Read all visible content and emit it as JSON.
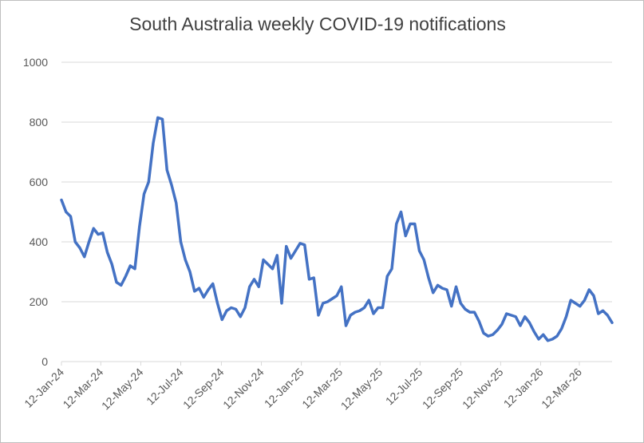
{
  "chart_data": {
    "type": "line",
    "title": "South Australia weekly COVID-19 notifications",
    "x": [
      "2024-01-12",
      "2024-01-19",
      "2024-01-26",
      "2024-02-02",
      "2024-02-09",
      "2024-02-16",
      "2024-02-23",
      "2024-03-01",
      "2024-03-08",
      "2024-03-15",
      "2024-03-22",
      "2024-03-29",
      "2024-04-05",
      "2024-04-12",
      "2024-04-19",
      "2024-04-26",
      "2024-05-03",
      "2024-05-10",
      "2024-05-17",
      "2024-05-24",
      "2024-05-31",
      "2024-06-07",
      "2024-06-14",
      "2024-06-21",
      "2024-06-28",
      "2024-07-05",
      "2024-07-12",
      "2024-07-19",
      "2024-07-26",
      "2024-08-02",
      "2024-08-09",
      "2024-08-16",
      "2024-08-23",
      "2024-08-30",
      "2024-09-06",
      "2024-09-13",
      "2024-09-20",
      "2024-09-27",
      "2024-10-04",
      "2024-10-11",
      "2024-10-18",
      "2024-10-25",
      "2024-11-01",
      "2024-11-08",
      "2024-11-15",
      "2024-11-22",
      "2024-11-29",
      "2024-12-06",
      "2024-12-13",
      "2024-12-20",
      "2024-12-27",
      "2025-01-03",
      "2025-01-10",
      "2025-01-17",
      "2025-01-24",
      "2025-01-31",
      "2025-02-07",
      "2025-02-14",
      "2025-02-21",
      "2025-02-28",
      "2025-03-07",
      "2025-03-14",
      "2025-03-21",
      "2025-03-28",
      "2025-04-04",
      "2025-04-11",
      "2025-04-18",
      "2025-04-25",
      "2025-05-02",
      "2025-05-09",
      "2025-05-16",
      "2025-05-23",
      "2025-05-30",
      "2025-06-06",
      "2025-06-13",
      "2025-06-20",
      "2025-06-27",
      "2025-07-04",
      "2025-07-11",
      "2025-07-18",
      "2025-07-25",
      "2025-08-01",
      "2025-08-08",
      "2025-08-15",
      "2025-08-22",
      "2025-08-29",
      "2025-09-05",
      "2025-09-12",
      "2025-09-19",
      "2025-09-26",
      "2025-10-03",
      "2025-10-10",
      "2025-10-17",
      "2025-10-24",
      "2025-10-31",
      "2025-11-07",
      "2025-11-14",
      "2025-11-21",
      "2025-11-28",
      "2025-12-05",
      "2025-12-12",
      "2025-12-19",
      "2025-12-26",
      "2026-01-02",
      "2026-01-09",
      "2026-01-16",
      "2026-01-23",
      "2026-01-30",
      "2026-02-06",
      "2026-02-13",
      "2026-02-20",
      "2026-02-27",
      "2026-03-06",
      "2026-03-13",
      "2026-03-20",
      "2026-03-27",
      "2026-04-03",
      "2026-04-10",
      "2026-04-17",
      "2026-04-24",
      "2026-05-01"
    ],
    "series": [
      {
        "color": "#4472c4",
        "values": [
          540,
          500,
          485,
          400,
          380,
          350,
          400,
          445,
          425,
          430,
          365,
          325,
          265,
          255,
          285,
          320,
          310,
          450,
          560,
          600,
          730,
          815,
          810,
          640,
          590,
          530,
          400,
          340,
          300,
          235,
          245,
          215,
          240,
          260,
          195,
          140,
          170,
          180,
          175,
          150,
          180,
          250,
          275,
          250,
          340,
          325,
          310,
          355,
          195,
          385,
          345,
          370,
          395,
          390,
          275,
          280,
          155,
          195,
          200,
          210,
          220,
          250,
          120,
          155,
          165,
          170,
          180,
          205,
          160,
          180,
          180,
          285,
          310,
          460,
          500,
          420,
          460,
          460,
          370,
          340,
          280,
          230,
          255,
          245,
          240,
          185,
          250,
          195,
          175,
          165,
          165,
          135,
          95,
          85,
          90,
          105,
          125,
          160,
          155,
          150,
          120,
          150,
          130,
          100,
          75,
          90,
          70,
          75,
          85,
          110,
          150,
          205,
          195,
          185,
          205,
          240,
          220,
          160,
          170,
          155,
          130
        ]
      }
    ],
    "xlim": [
      "2024-01-12",
      "2026-05-01"
    ],
    "xticks": [
      {
        "value": "2024-01-12",
        "label": "12-Jan-24"
      },
      {
        "value": "2024-03-12",
        "label": "12-Mar-24"
      },
      {
        "value": "2024-05-12",
        "label": "12-May-24"
      },
      {
        "value": "2024-07-12",
        "label": "12-Jul-24"
      },
      {
        "value": "2024-09-12",
        "label": "12-Sep-24"
      },
      {
        "value": "2024-11-12",
        "label": "12-Nov-24"
      },
      {
        "value": "2025-01-12",
        "label": "12-Jan-25"
      },
      {
        "value": "2025-03-12",
        "label": "12-Mar-25"
      },
      {
        "value": "2025-05-12",
        "label": "12-May-25"
      },
      {
        "value": "2025-07-12",
        "label": "12-Jul-25"
      },
      {
        "value": "2025-09-12",
        "label": "12-Sep-25"
      },
      {
        "value": "2025-11-12",
        "label": "12-Nov-25"
      },
      {
        "value": "2026-01-12",
        "label": "12-Jan-26"
      },
      {
        "value": "2026-03-12",
        "label": "12-Mar-26"
      }
    ],
    "ylim": [
      0,
      1000
    ],
    "yticks": [
      0,
      200,
      400,
      600,
      800,
      1000
    ],
    "grid": true
  }
}
